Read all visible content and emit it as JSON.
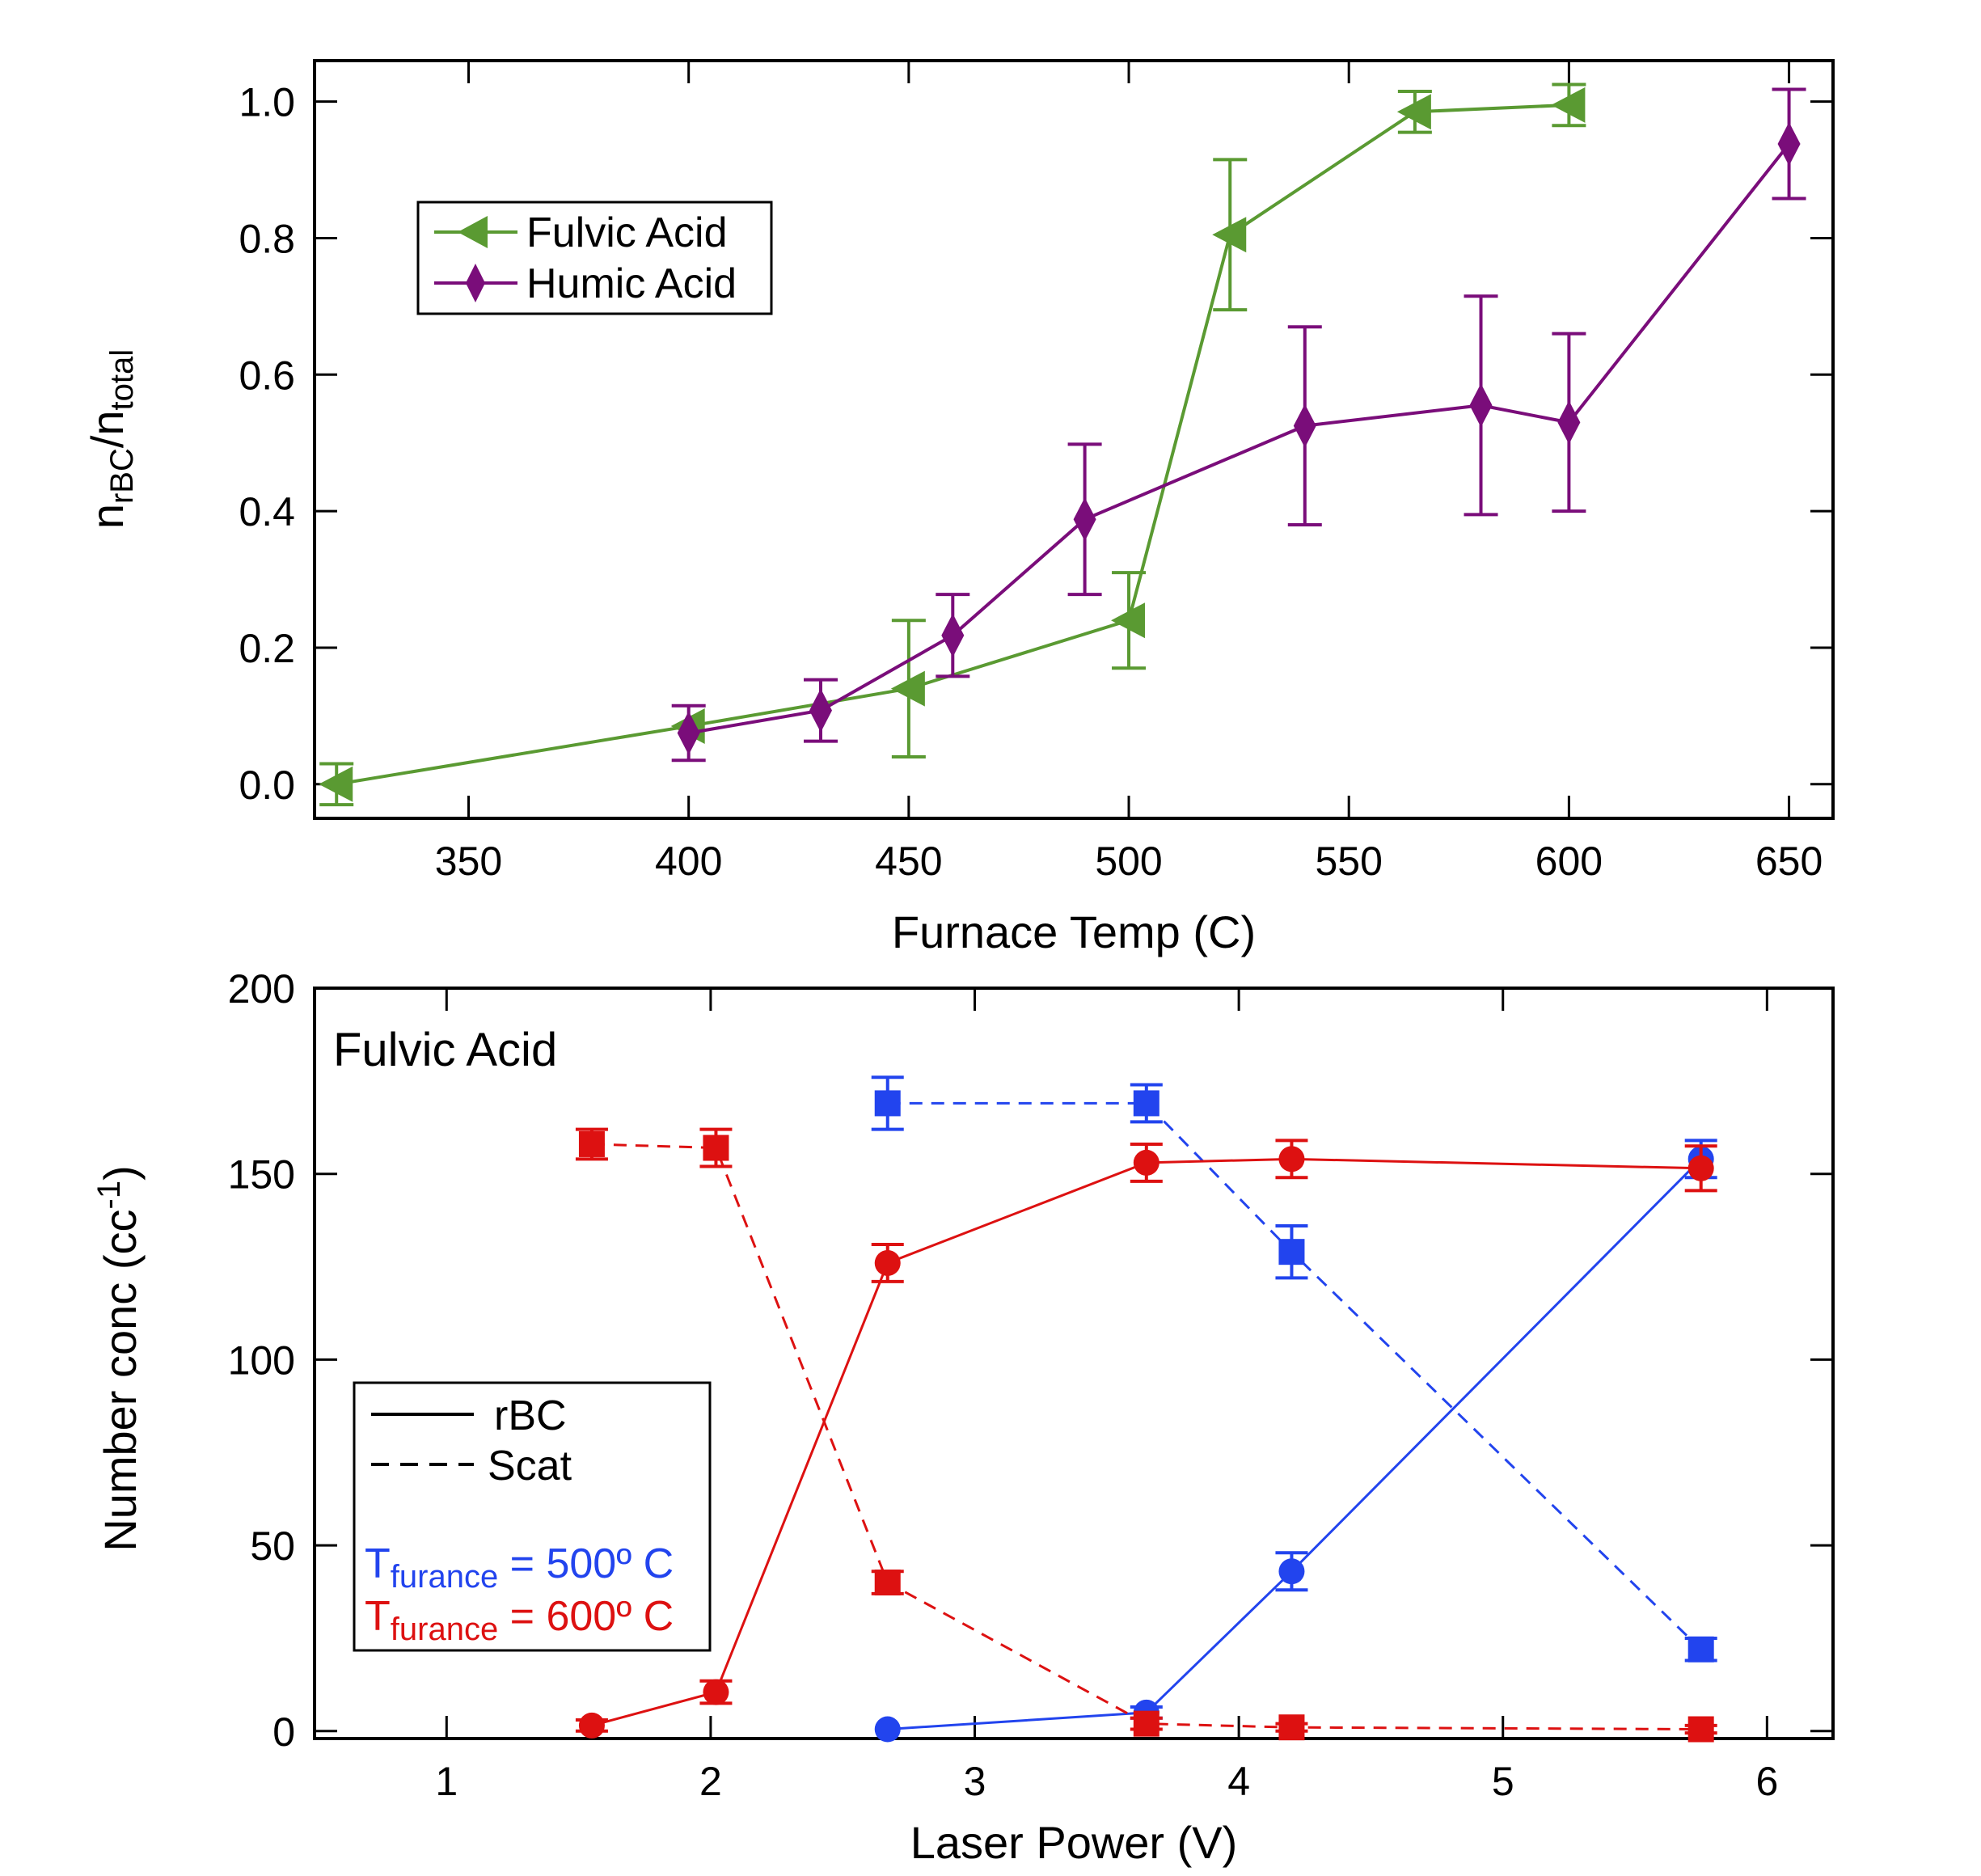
{
  "chart_data": [
    {
      "type": "line",
      "xlabel": "Furnace Temp (C)",
      "ylabel": {
        "main": "n",
        "sub1": "rBC",
        "slash": "/n",
        "sub2": "total"
      },
      "xlim": [
        315,
        660
      ],
      "ylim": [
        -0.05,
        1.06
      ],
      "xticks": [
        350,
        400,
        450,
        500,
        550,
        600,
        650
      ],
      "yticks": [
        0.0,
        0.2,
        0.4,
        0.6,
        0.8,
        1.0
      ],
      "ytick_labels": [
        "0.0",
        "0.2",
        "0.4",
        "0.6",
        "0.8",
        "1.0"
      ],
      "legend_position": "upper-left",
      "series": [
        {
          "name": "Fulvic Acid",
          "color": "#5a9a32",
          "marker": "left-triangle",
          "x": [
            320,
            400,
            450,
            500,
            523,
            565,
            600
          ],
          "y": [
            0.0,
            0.085,
            0.14,
            0.24,
            0.805,
            0.985,
            0.995
          ],
          "err": [
            0.03,
            0.0,
            0.1,
            0.07,
            0.11,
            0.03,
            0.03
          ]
        },
        {
          "name": "Humic Acid",
          "color": "#7a0d7a",
          "marker": "diamond",
          "x": [
            400,
            430,
            460,
            490,
            540,
            580,
            600,
            650
          ],
          "y": [
            0.075,
            0.108,
            0.218,
            0.388,
            0.525,
            0.555,
            0.53,
            0.938
          ],
          "err": [
            0.04,
            0.045,
            0.06,
            0.11,
            0.145,
            0.16,
            0.13,
            0.08
          ]
        }
      ]
    },
    {
      "type": "line",
      "title": "Fulvic Acid",
      "xlabel": "Laser Power (V)",
      "ylabel": {
        "main": "Number conc (cc",
        "sup": "-1",
        "tail": ")"
      },
      "xlim": [
        0.5,
        6.25
      ],
      "ylim": [
        -2,
        200
      ],
      "xticks": [
        1,
        2,
        3,
        4,
        5,
        6
      ],
      "yticks": [
        0,
        50,
        100,
        150,
        200
      ],
      "legend_position": "lower-left",
      "legend": {
        "line_styles": [
          {
            "label": "rBC",
            "style": "solid"
          },
          {
            "label": "Scat",
            "style": "dashed"
          }
        ],
        "temperatures": [
          {
            "prefix": "T",
            "sub": "furance",
            "value": " = 500º C",
            "color": "#2244ee"
          },
          {
            "prefix": "T",
            "sub": "furance",
            "value": " = 600º C",
            "color": "#dd1111"
          }
        ]
      },
      "series": [
        {
          "group": "500º C rBC",
          "color": "#2244ee",
          "style": "solid",
          "marker": "circle",
          "x": [
            2.67,
            3.65,
            4.2,
            5.75
          ],
          "y": [
            0.5,
            5,
            43,
            154
          ],
          "err": [
            0,
            1.5,
            5,
            5
          ]
        },
        {
          "group": "500º C Scat",
          "color": "#2244ee",
          "style": "dashed",
          "marker": "square",
          "x": [
            2.67,
            3.65,
            4.2,
            5.75
          ],
          "y": [
            169,
            169,
            129,
            22
          ],
          "err": [
            7,
            5,
            7,
            3
          ]
        },
        {
          "group": "600º C rBC",
          "color": "#dd1111",
          "style": "solid",
          "marker": "circle",
          "x": [
            1.55,
            2.02,
            2.67,
            3.65,
            4.2,
            5.75
          ],
          "y": [
            1.5,
            10.5,
            126,
            153,
            154,
            151.5
          ],
          "err": [
            1.5,
            3,
            5,
            5,
            5,
            6
          ]
        },
        {
          "group": "600º C Scat",
          "color": "#dd1111",
          "style": "dashed",
          "marker": "square",
          "x": [
            1.55,
            2.02,
            2.67,
            3.65,
            4.2,
            5.75
          ],
          "y": [
            158,
            157,
            40,
            2,
            1,
            0.5
          ],
          "err": [
            4,
            5,
            3,
            1.5,
            1,
            1
          ]
        }
      ]
    }
  ]
}
